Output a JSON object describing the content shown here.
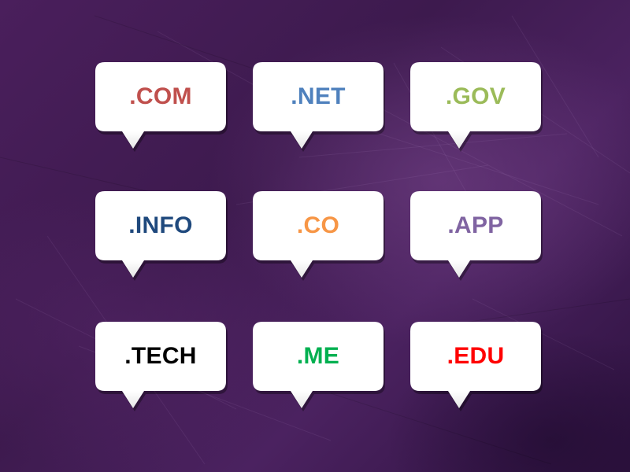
{
  "bubbles": [
    {
      "label": ".COM",
      "color": "#c0504d"
    },
    {
      "label": ".NET",
      "color": "#4f81bd"
    },
    {
      "label": ".GOV",
      "color": "#9bbb59"
    },
    {
      "label": ".INFO",
      "color": "#1f497d"
    },
    {
      "label": ".CO",
      "color": "#f79646"
    },
    {
      "label": ".APP",
      "color": "#8064a2"
    },
    {
      "label": ".TECH",
      "color": "#000000"
    },
    {
      "label": ".ME",
      "color": "#00b050"
    },
    {
      "label": ".EDU",
      "color": "#ff0000"
    }
  ],
  "background_color": "#3f1b50",
  "bubble_fill": "#ffffff"
}
